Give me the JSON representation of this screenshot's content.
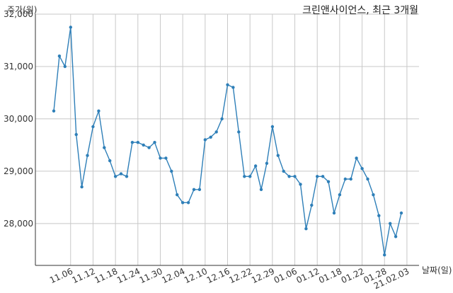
{
  "chart_data": {
    "type": "line",
    "title": "크린앤사이언스, 최근 3개월",
    "xlabel": "날짜(일)",
    "ylabel": "주가(원)",
    "ylim": [
      27200,
      32000
    ],
    "y_ticks": [
      28000,
      29000,
      30000,
      31000,
      32000
    ],
    "y_tick_labels": [
      "28,000",
      "29,000",
      "30,000",
      "31,000",
      "32,000"
    ],
    "x_tick_labels": [
      "11.06",
      "11.12",
      "11.18",
      "11.24",
      "11.30",
      "12.04",
      "12.10",
      "12.16",
      "12.22",
      "12.29",
      "01.06",
      "01.12",
      "01.18",
      "01.22",
      "01.28",
      "21.02.03"
    ],
    "x_tick_positions": [
      3,
      7,
      11,
      15,
      19,
      23,
      27,
      31,
      35,
      39,
      43,
      47,
      51,
      55,
      59,
      63
    ],
    "grid": true,
    "colors": {
      "line": "#2e7fb8"
    },
    "series": [
      {
        "values": [
          30150,
          31200,
          31000,
          31750,
          29700,
          28700,
          29300,
          29850,
          30150,
          29450,
          29200,
          28900,
          28950,
          28900,
          29550,
          29550,
          29500,
          29450,
          29550,
          29250,
          29250,
          29000,
          28550,
          28400,
          28400,
          28650,
          28650,
          29600,
          29650,
          29750,
          30000,
          30650,
          30600,
          29750,
          28900,
          28900,
          29100,
          28650,
          29150,
          29850,
          29300,
          29000,
          28900,
          28900,
          28750,
          27900,
          28350,
          28900,
          28900,
          28800,
          28200,
          28550,
          28850,
          28850,
          29250,
          29050,
          28850,
          28550,
          28150,
          27400,
          28000,
          27750,
          28200
        ]
      }
    ]
  }
}
